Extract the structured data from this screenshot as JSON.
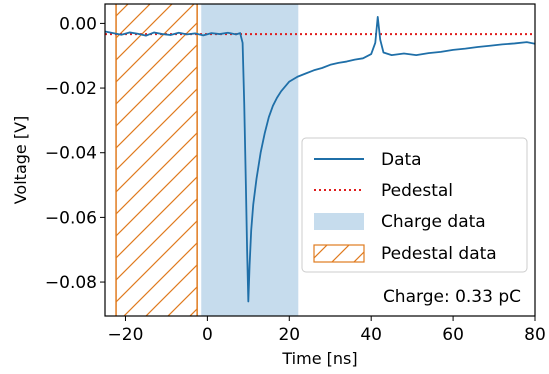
{
  "chart_data": {
    "type": "line",
    "xlabel": "Time [ns]",
    "ylabel": "Voltage [V]",
    "xlim": [
      -25,
      80
    ],
    "ylim": [
      -0.0905,
      0.006
    ],
    "xticks": [
      -20,
      0,
      20,
      40,
      60,
      80
    ],
    "xtick_labels": [
      "−20",
      "0",
      "20",
      "40",
      "60",
      "80"
    ],
    "yticks": [
      0.0,
      -0.02,
      -0.04,
      -0.06,
      -0.08
    ],
    "ytick_labels": [
      "0.00",
      "−0.02",
      "−0.04",
      "−0.06",
      "−0.08"
    ],
    "grid": false,
    "legend_position": "lower-right",
    "series": [
      {
        "name": "Data",
        "color": "#1f6fa8",
        "points": [
          [
            -25,
            -0.0025
          ],
          [
            -23,
            -0.003
          ],
          [
            -21,
            -0.0035
          ],
          [
            -19,
            -0.0028
          ],
          [
            -17,
            -0.0032
          ],
          [
            -15,
            -0.0038
          ],
          [
            -13,
            -0.0028
          ],
          [
            -11,
            -0.0033
          ],
          [
            -9,
            -0.0036
          ],
          [
            -7,
            -0.0029
          ],
          [
            -5,
            -0.0034
          ],
          [
            -3,
            -0.0031
          ],
          [
            -1,
            -0.0037
          ],
          [
            1,
            -0.003
          ],
          [
            3,
            -0.0033
          ],
          [
            5,
            -0.0029
          ],
          [
            7,
            -0.0034
          ],
          [
            8,
            -0.003
          ],
          [
            8.6,
            -0.006
          ],
          [
            9.0,
            -0.025
          ],
          [
            9.4,
            -0.05
          ],
          [
            9.7,
            -0.07
          ],
          [
            10.0,
            -0.086
          ],
          [
            10.3,
            -0.075
          ],
          [
            10.7,
            -0.064
          ],
          [
            11.2,
            -0.056
          ],
          [
            12,
            -0.048
          ],
          [
            13,
            -0.04
          ],
          [
            14,
            -0.034
          ],
          [
            15,
            -0.029
          ],
          [
            16,
            -0.0255
          ],
          [
            17,
            -0.023
          ],
          [
            18,
            -0.021
          ],
          [
            19,
            -0.0195
          ],
          [
            20,
            -0.018
          ],
          [
            22,
            -0.0165
          ],
          [
            24,
            -0.0155
          ],
          [
            26,
            -0.0145
          ],
          [
            28,
            -0.0138
          ],
          [
            30,
            -0.0128
          ],
          [
            32,
            -0.0122
          ],
          [
            34,
            -0.0118
          ],
          [
            36,
            -0.0112
          ],
          [
            38,
            -0.0108
          ],
          [
            40,
            -0.0095
          ],
          [
            41,
            -0.006
          ],
          [
            41.6,
            0.002
          ],
          [
            42.2,
            -0.005
          ],
          [
            43,
            -0.009
          ],
          [
            45,
            -0.0098
          ],
          [
            48,
            -0.0093
          ],
          [
            51,
            -0.0098
          ],
          [
            54,
            -0.0092
          ],
          [
            57,
            -0.0088
          ],
          [
            60,
            -0.0082
          ],
          [
            63,
            -0.0078
          ],
          [
            66,
            -0.0073
          ],
          [
            69,
            -0.0069
          ],
          [
            72,
            -0.0065
          ],
          [
            75,
            -0.0062
          ],
          [
            78,
            -0.0058
          ],
          [
            80,
            -0.0063
          ]
        ]
      },
      {
        "name": "Pedestal",
        "color": "#e01c1c",
        "value": -0.0033
      }
    ],
    "regions": [
      {
        "name": "Charge data",
        "color": "#c6dced",
        "x": [
          -1.5,
          22.2
        ]
      },
      {
        "name": "Pedestal data",
        "color": "#e07b1f",
        "x": [
          -22.3,
          -2.5
        ],
        "hatch": true
      }
    ],
    "annotation": "Charge: 0.33 pC"
  }
}
